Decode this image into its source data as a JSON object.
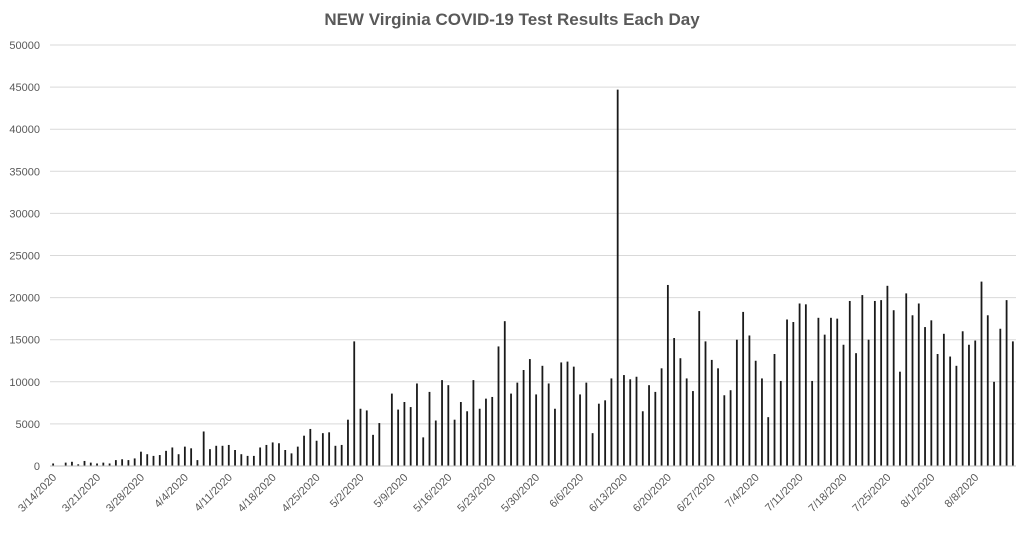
{
  "chart_data": {
    "type": "bar",
    "title": "NEW Virginia COVID-19 Test Results Each Day",
    "xlabel": "",
    "ylabel": "",
    "ylim": [
      0,
      50000
    ],
    "yticks": [
      0,
      5000,
      10000,
      15000,
      20000,
      25000,
      30000,
      35000,
      40000,
      45000,
      50000
    ],
    "grid": true,
    "legend": "none",
    "bar_color": "#1a1a1a",
    "grid_color": "#d9d9d9",
    "date_start": "3/14/2020",
    "x_tick_labels": [
      "3/14/2020",
      "3/21/2020",
      "3/28/2020",
      "4/4/2020",
      "4/11/2020",
      "4/18/2020",
      "4/25/2020",
      "5/2/2020",
      "5/9/2020",
      "5/16/2020",
      "5/23/2020",
      "5/30/2020",
      "6/6/2020",
      "6/13/2020",
      "6/20/2020",
      "6/27/2020",
      "7/4/2020",
      "7/11/2020",
      "7/18/2020",
      "7/25/2020",
      "8/1/2020",
      "8/8/2020"
    ],
    "values": [
      300,
      0,
      400,
      500,
      200,
      600,
      400,
      300,
      400,
      300,
      700,
      800,
      700,
      900,
      1700,
      1400,
      1200,
      1300,
      1800,
      2200,
      1400,
      2300,
      2100,
      700,
      4100,
      2000,
      2400,
      2400,
      2500,
      1900,
      1400,
      1200,
      1200,
      2200,
      2500,
      2800,
      2700,
      1900,
      1500,
      2300,
      3600,
      4400,
      3000,
      3900,
      4000,
      2400,
      2500,
      5500,
      14800,
      6800,
      6600,
      3700,
      5100,
      0,
      8600,
      6700,
      7600,
      7000,
      9800,
      3400,
      8800,
      5400,
      10200,
      9600,
      5500,
      7600,
      6500,
      10200,
      6800,
      8000,
      8200,
      14200,
      17200,
      8600,
      9900,
      11400,
      12700,
      8500,
      11900,
      9800,
      6800,
      12300,
      12400,
      11800,
      8500,
      9900,
      3900,
      7400,
      7800,
      10400,
      44700,
      10800,
      10300,
      10600,
      6500,
      9600,
      8800,
      11600,
      21500,
      15200,
      12800,
      10400,
      8900,
      18400,
      14800,
      12600,
      11600,
      8400,
      9000,
      15000,
      18300,
      15500,
      12500,
      10400,
      5800,
      13300,
      10100,
      17400,
      17100,
      19300,
      19200,
      10100,
      17600,
      15600,
      17600,
      17500,
      14400,
      19600,
      13400,
      20300,
      15000,
      19600,
      19700,
      21400,
      18500,
      11200,
      20500,
      17900,
      19300,
      16500,
      17300,
      13300,
      15700,
      13000,
      11900,
      16000,
      14400,
      14900,
      21900,
      17900,
      10000,
      16300,
      19700,
      14800
    ]
  }
}
